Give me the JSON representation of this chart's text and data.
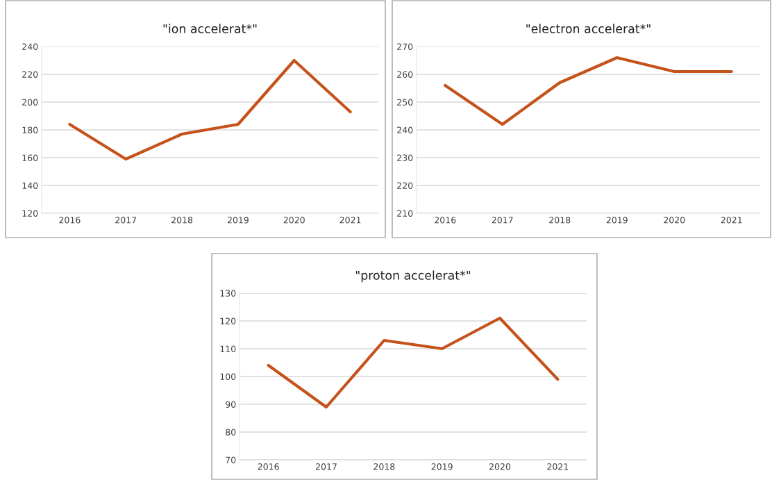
{
  "chart_data": [
    {
      "type": "line",
      "title": "\"ion accelerat*\"",
      "categories": [
        "2016",
        "2017",
        "2018",
        "2019",
        "2020",
        "2021"
      ],
      "series": [
        {
          "color": "#c5521b",
          "values": [
            184,
            159,
            177,
            184,
            230,
            193
          ]
        }
      ],
      "ylim": [
        120,
        240
      ],
      "yticks": [
        120,
        140,
        160,
        180,
        200,
        220,
        240
      ],
      "grid": "y"
    },
    {
      "type": "line",
      "title": "\"electron accelerat*\"",
      "categories": [
        "2016",
        "2017",
        "2018",
        "2019",
        "2020",
        "2021"
      ],
      "series": [
        {
          "color": "#c5521b",
          "values": [
            256,
            242,
            257,
            266,
            261,
            261
          ]
        }
      ],
      "ylim": [
        210,
        270
      ],
      "yticks": [
        210,
        220,
        230,
        240,
        250,
        260,
        270
      ],
      "grid": "y"
    },
    {
      "type": "line",
      "title": "\"proton accelerat*\"",
      "categories": [
        "2016",
        "2017",
        "2018",
        "2019",
        "2020",
        "2021"
      ],
      "series": [
        {
          "color": "#c5521b",
          "values": [
            104,
            89,
            113,
            110,
            121,
            99
          ]
        }
      ],
      "ylim": [
        70,
        130
      ],
      "yticks": [
        70,
        80,
        90,
        100,
        110,
        120,
        130
      ],
      "grid": "y"
    }
  ]
}
